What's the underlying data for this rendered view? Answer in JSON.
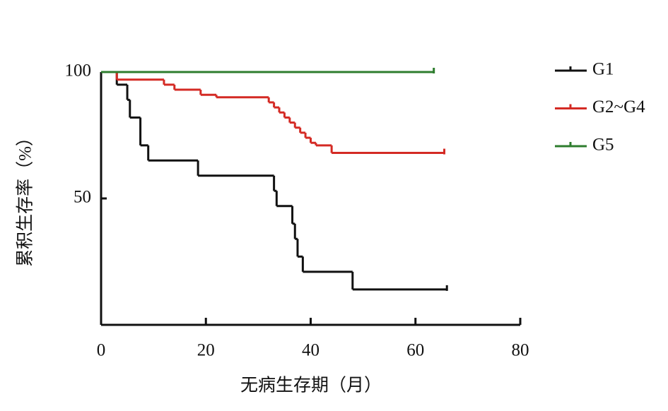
{
  "chart_data": {
    "type": "line",
    "step": true,
    "x_label": "无病生存期（月）",
    "y_label": "累积生存率（%）",
    "xlim": [
      0,
      80
    ],
    "xticks": [
      0,
      20,
      40,
      60,
      80
    ],
    "ylim": [
      0,
      100
    ],
    "yticks": [
      50,
      100
    ],
    "legend": "right",
    "series": [
      {
        "name": "G1",
        "color": "#111111",
        "x": [
          0,
          3,
          5,
          5.5,
          7.5,
          9,
          18.5,
          33,
          33.5,
          36.5,
          37,
          37.5,
          38.5,
          48,
          66
        ],
        "values": [
          100,
          95,
          89,
          82,
          71,
          65,
          59,
          53,
          47,
          40,
          34,
          27,
          21,
          14,
          14
        ]
      },
      {
        "name": "G2~G4",
        "color": "#d42a24",
        "x": [
          0,
          3,
          12,
          14,
          19,
          22,
          32,
          33,
          34,
          35,
          36,
          37,
          38,
          39,
          40,
          41,
          44,
          65.5
        ],
        "values": [
          100,
          97,
          95,
          93,
          91,
          90,
          88,
          86,
          84,
          82,
          80,
          78,
          76,
          74,
          72,
          71,
          68,
          68
        ]
      },
      {
        "name": "G5",
        "color": "#2e7d2e",
        "x": [
          0,
          63.5
        ],
        "values": [
          100,
          100
        ]
      }
    ]
  }
}
